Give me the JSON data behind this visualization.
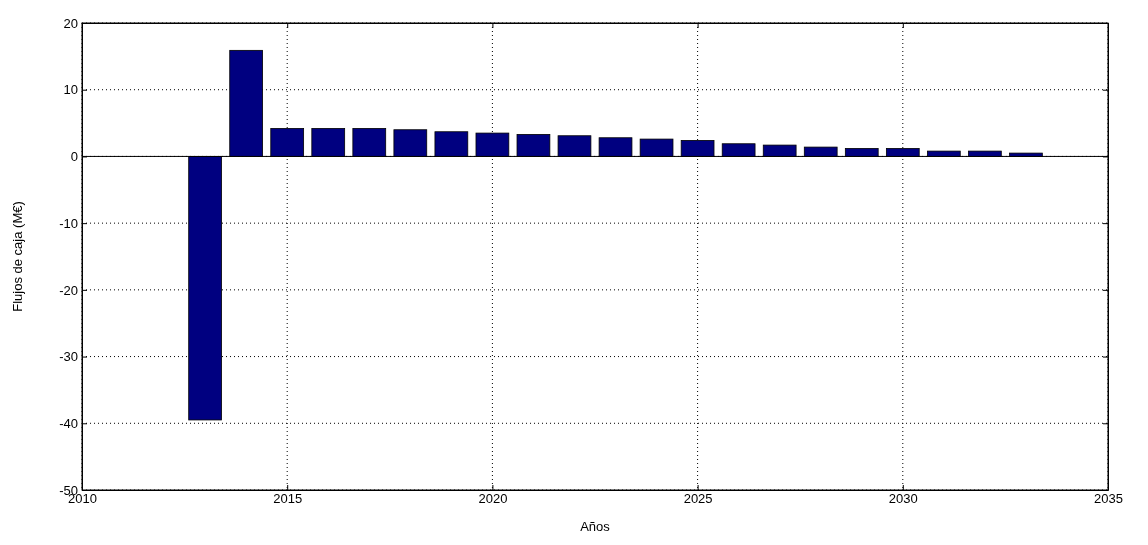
{
  "chart_data": {
    "type": "bar",
    "xlabel": "Años",
    "ylabel": "Flujos de caja (M€)",
    "x": [
      2013,
      2014,
      2015,
      2016,
      2017,
      2018,
      2019,
      2020,
      2021,
      2022,
      2023,
      2024,
      2025,
      2026,
      2027,
      2028,
      2029,
      2030,
      2031,
      2032,
      2033
    ],
    "series": [
      {
        "color": "#000080",
        "values": [
          -39.5,
          15.9,
          4.2,
          4.2,
          4.2,
          4.0,
          3.7,
          3.5,
          3.3,
          3.1,
          2.8,
          2.6,
          2.4,
          1.9,
          1.7,
          1.4,
          1.2,
          1.2,
          0.8,
          0.8,
          0.5
        ]
      }
    ],
    "xlim": [
      2010,
      2035
    ],
    "xticks": [
      2010,
      2015,
      2020,
      2025,
      2030,
      2035
    ],
    "ylim": [
      -50,
      20
    ],
    "yticks": [
      -50,
      -40,
      -30,
      -20,
      -10,
      0,
      10,
      20
    ],
    "grid": true
  }
}
